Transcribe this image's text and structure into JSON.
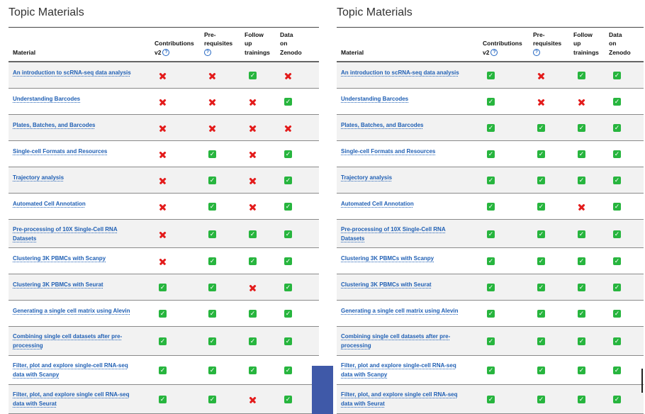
{
  "title": "Topic Materials",
  "headers": {
    "material": "Material",
    "contributions": [
      "Contributions",
      "v2"
    ],
    "prerequisites": [
      "Pre-",
      "requisites"
    ],
    "follow": [
      "Follow",
      "up",
      "trainings"
    ],
    "zenodo": [
      "Data",
      "on",
      "Zenodo"
    ],
    "help_icon": "help-question-icon"
  },
  "colors": {
    "link": "#1f5fb4",
    "check": "#27b53e",
    "cross": "#e31b1b",
    "row_alt": "#f2f2f2"
  },
  "materials": [
    [
      "An introduction to scRNA-seq data analysis"
    ],
    [
      "Understanding Barcodes"
    ],
    [
      "Plates, Batches, and Barcodes"
    ],
    [
      "Single-cell Formats and Resources"
    ],
    [
      "Trajectory analysis"
    ],
    [
      "Automated Cell Annotation"
    ],
    [
      "Pre-processing of 10X Single-Cell RNA",
      "Datasets"
    ],
    [
      "Clustering 3K PBMCs with Scanpy"
    ],
    [
      "Clustering 3K PBMCs with Seurat"
    ],
    [
      "Generating a single cell matrix using Alevin"
    ],
    [
      "Combining single cell datasets after pre-",
      "processing"
    ],
    [
      "Filter, plot and explore single-cell RNA-seq",
      "data with Scanpy"
    ],
    [
      "Filter, plot, and explore single cell RNA-seq",
      "data with Seurat"
    ]
  ],
  "left_status": [
    [
      "no",
      "no",
      "yes",
      "no"
    ],
    [
      "no",
      "no",
      "no",
      "yes"
    ],
    [
      "no",
      "no",
      "no",
      "no"
    ],
    [
      "no",
      "yes",
      "no",
      "yes"
    ],
    [
      "no",
      "yes",
      "no",
      "yes"
    ],
    [
      "no",
      "yes",
      "no",
      "yes"
    ],
    [
      "no",
      "yes",
      "yes",
      "yes"
    ],
    [
      "no",
      "yes",
      "yes",
      "yes"
    ],
    [
      "yes",
      "yes",
      "no",
      "yes"
    ],
    [
      "yes",
      "yes",
      "yes",
      "yes"
    ],
    [
      "yes",
      "yes",
      "yes",
      "yes"
    ],
    [
      "yes",
      "yes",
      "yes",
      "yes"
    ],
    [
      "yes",
      "yes",
      "no",
      "yes"
    ]
  ],
  "right_status": [
    [
      "yes",
      "no",
      "yes",
      "yes"
    ],
    [
      "yes",
      "no",
      "no",
      "yes"
    ],
    [
      "yes",
      "yes",
      "yes",
      "yes"
    ],
    [
      "yes",
      "yes",
      "yes",
      "yes"
    ],
    [
      "yes",
      "yes",
      "yes",
      "yes"
    ],
    [
      "yes",
      "yes",
      "no",
      "yes"
    ],
    [
      "yes",
      "yes",
      "yes",
      "yes"
    ],
    [
      "yes",
      "yes",
      "yes",
      "yes"
    ],
    [
      "yes",
      "yes",
      "yes",
      "yes"
    ],
    [
      "yes",
      "yes",
      "yes",
      "yes"
    ],
    [
      "yes",
      "yes",
      "yes",
      "yes"
    ],
    [
      "yes",
      "yes",
      "yes",
      "yes"
    ],
    [
      "yes",
      "yes",
      "yes",
      "yes"
    ]
  ]
}
